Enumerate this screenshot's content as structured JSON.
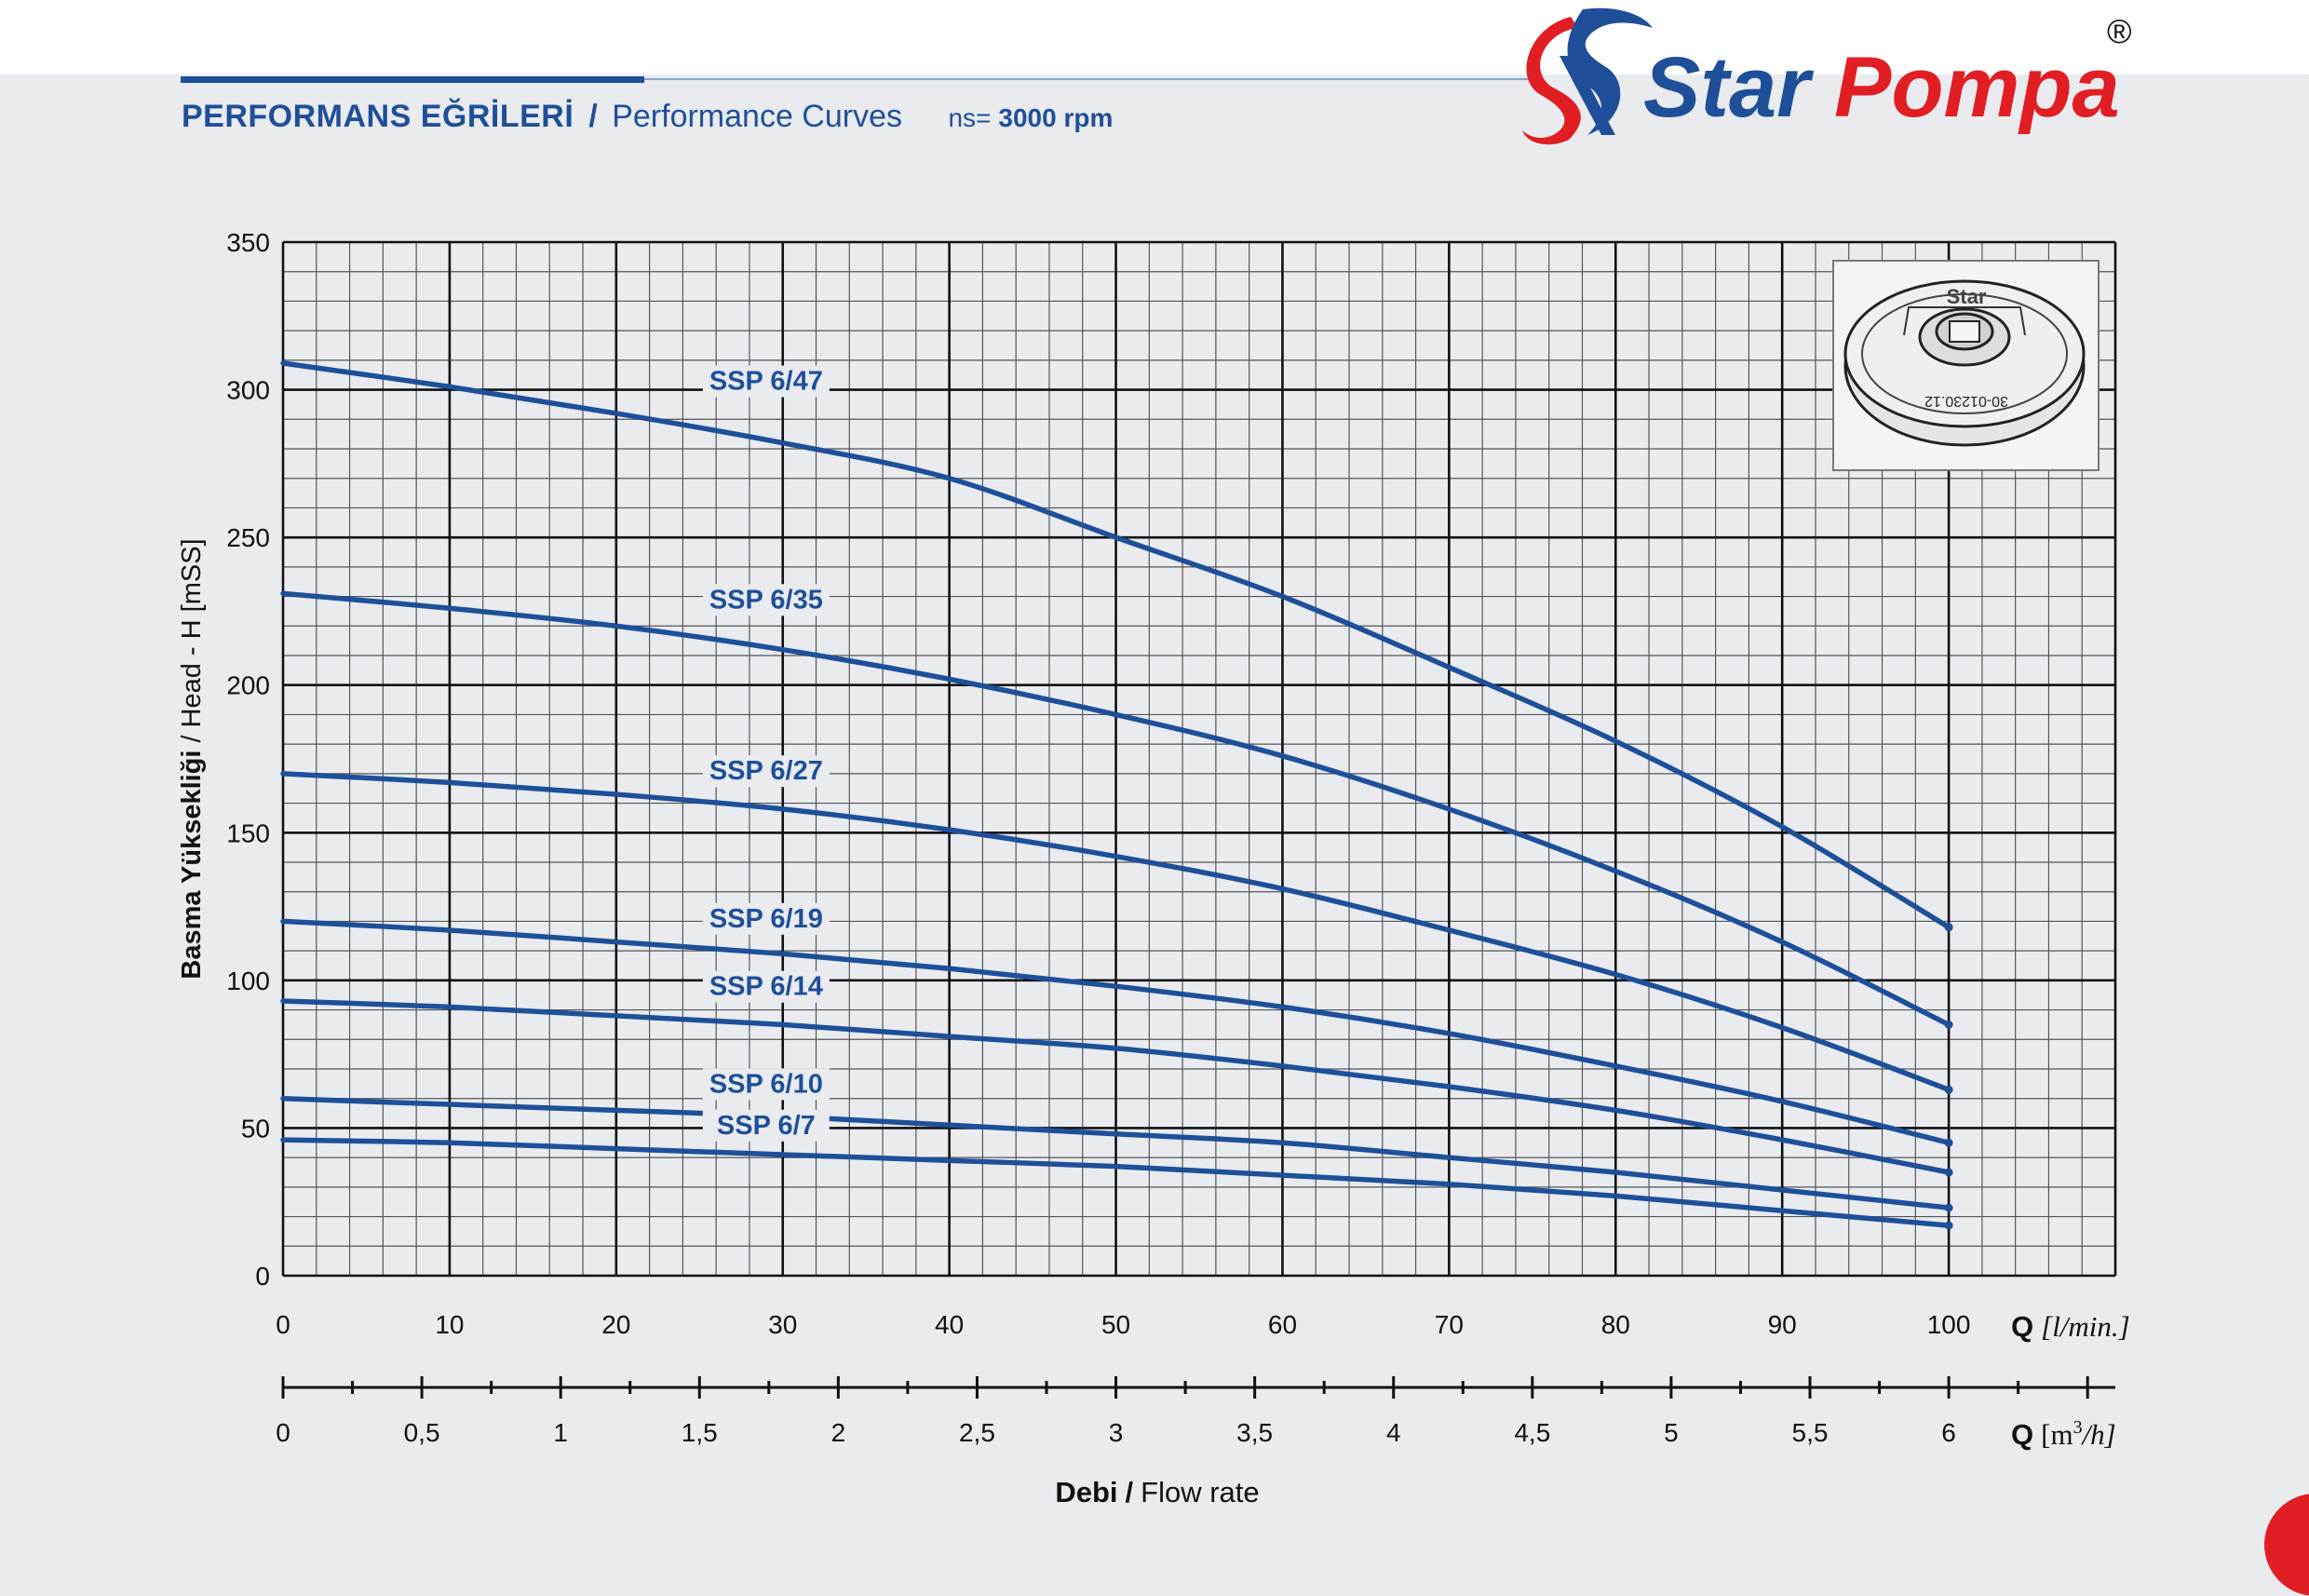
{
  "header": {
    "title_tr": "PERFORMANS EĞRİLERİ",
    "separator": "/",
    "title_en": "Performance Curves",
    "speed_label": "ns=",
    "speed_value": "3000 rpm"
  },
  "brand": {
    "name_part1": "Star",
    "name_part2": "Pompa",
    "registered": "®",
    "colors": {
      "blue": "#1f4f99",
      "red": "#e01e24"
    }
  },
  "impeller": {
    "brand_text": "Star",
    "part_code": "30-01230.12",
    "icon": "impeller-diagram-icon"
  },
  "chart_data": {
    "type": "line",
    "ylabel_bold": "Basma Yüksekliği",
    "ylabel_sep": "/",
    "ylabel_rest": "Head - H [mSS]",
    "xlabel_bold": "Debi",
    "xlabel_sep": "/",
    "xlabel_rest": "Flow rate",
    "ylim": [
      0,
      350
    ],
    "yticks": [
      "0",
      "50",
      "100",
      "150",
      "200",
      "250",
      "300",
      "350"
    ],
    "xlim": [
      0,
      110
    ],
    "x_axis_primary": {
      "unit_symbol": "Q",
      "unit_text": "[l/min.]",
      "ticks": [
        0,
        10,
        20,
        30,
        40,
        50,
        60,
        70,
        80,
        90,
        100
      ],
      "tick_labels": [
        "0",
        "10",
        "20",
        "30",
        "40",
        "50",
        "60",
        "70",
        "80",
        "90",
        "100"
      ]
    },
    "x_axis_secondary": {
      "unit_symbol": "Q",
      "unit_bracket_open": "[m",
      "unit_sup": "3",
      "unit_rest": "/h]",
      "range": [
        0,
        6.6
      ],
      "ticks": [
        0,
        0.5,
        1,
        1.5,
        2,
        2.5,
        3,
        3.5,
        4,
        4.5,
        5,
        5.5,
        6
      ],
      "tick_labels": [
        "0",
        "0,5",
        "1",
        "1,5",
        "2",
        "2,5",
        "3",
        "3,5",
        "4",
        "4,5",
        "5",
        "5,5",
        "6"
      ]
    },
    "grid": true,
    "x": [
      0,
      10,
      20,
      30,
      40,
      50,
      60,
      70,
      80,
      90,
      100
    ],
    "series": [
      {
        "name": "SSP 6/47",
        "values": [
          309,
          301,
          292,
          282,
          270,
          250,
          230,
          206,
          181,
          152,
          118
        ],
        "label_at": [
          29,
          300
        ]
      },
      {
        "name": "SSP 6/35",
        "values": [
          231,
          226,
          220,
          212,
          202,
          190,
          176,
          158,
          137,
          113,
          85
        ],
        "label_at": [
          29,
          226
        ]
      },
      {
        "name": "SSP 6/27",
        "values": [
          170,
          167,
          163,
          158,
          151,
          142,
          131,
          117,
          102,
          84,
          63
        ],
        "label_at": [
          29,
          168
        ]
      },
      {
        "name": "SSP 6/19",
        "values": [
          120,
          117,
          113,
          109,
          104,
          98,
          91,
          82,
          71,
          59,
          45
        ],
        "label_at": [
          29,
          118
        ]
      },
      {
        "name": "SSP 6/14",
        "values": [
          93,
          91,
          88,
          85,
          81,
          77,
          71,
          64,
          56,
          46,
          35
        ],
        "label_at": [
          29,
          95
        ]
      },
      {
        "name": "SSP 6/10",
        "values": [
          60,
          58,
          56,
          54,
          51,
          48,
          45,
          40,
          35,
          29,
          23
        ],
        "label_at": [
          29,
          62
        ]
      },
      {
        "name": "SSP 6/7",
        "values": [
          46,
          45,
          43,
          41,
          39,
          37,
          34,
          31,
          27,
          22,
          17
        ],
        "label_at": [
          29,
          48
        ]
      }
    ]
  }
}
